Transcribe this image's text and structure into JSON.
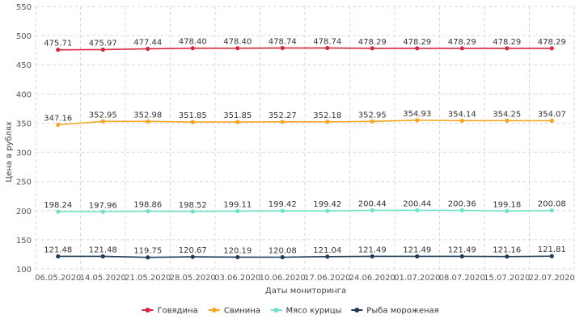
{
  "chart_data": {
    "type": "line",
    "title": "",
    "xlabel": "Даты мониторинга",
    "ylabel": "Цена в рублях",
    "ylim": [
      100,
      550
    ],
    "yticks": [
      100,
      150,
      200,
      250,
      300,
      350,
      400,
      450,
      500,
      550
    ],
    "grid": true,
    "legend_position": "bottom",
    "categories": [
      "06.05.2020",
      "14.05.2020",
      "21.05.2020",
      "28.05.2020",
      "03.06.2020",
      "10.06.2020",
      "17.06.2020",
      "24.06.2020",
      "01.07.2020",
      "08.07.2020",
      "15.07.2020",
      "22.07.2020"
    ],
    "series": [
      {
        "name": "Говядина",
        "color": "#d7263d",
        "values": [
          475.71,
          475.97,
          477.44,
          478.4,
          478.4,
          478.74,
          478.74,
          478.29,
          478.29,
          478.29,
          478.29,
          478.29
        ],
        "labels": [
          "475.71",
          "475.97",
          "477.44",
          "478.40",
          "478.40",
          "478.74",
          "478.74",
          "478.29",
          "478.29",
          "478.29",
          "478.29",
          "478.29"
        ]
      },
      {
        "name": "Свинина",
        "color": "#f5a623",
        "values": [
          347.16,
          352.95,
          352.98,
          351.85,
          351.85,
          352.27,
          352.18,
          352.95,
          354.93,
          354.14,
          354.25,
          354.07
        ],
        "labels": [
          "347.16",
          "352.95",
          "352.98",
          "351.85",
          "351.85",
          "352.27",
          "352.18",
          "352.95",
          "354.93",
          "354.14",
          "354.25",
          "354.07"
        ]
      },
      {
        "name": "Мясо курицы",
        "color": "#6fe3c8",
        "values": [
          198.24,
          197.96,
          198.86,
          198.52,
          199.11,
          199.42,
          199.42,
          200.44,
          200.44,
          200.36,
          199.18,
          200.08
        ],
        "labels": [
          "198.24",
          "197.96",
          "198.86",
          "198.52",
          "199.11",
          "199.42",
          "199.42",
          "200.44",
          "200.44",
          "200.36",
          "199.18",
          "200.08"
        ]
      },
      {
        "name": "Рыба мороженая",
        "color": "#1f3b57",
        "values": [
          121.48,
          121.48,
          119.75,
          120.67,
          120.19,
          120.08,
          121.04,
          121.49,
          121.49,
          121.49,
          121.16,
          121.81
        ],
        "labels": [
          "121.48",
          "121.48",
          "119.75",
          "120.67",
          "120.19",
          "120.08",
          "121.04",
          "121.49",
          "121.49",
          "121.49",
          "121.16",
          "121.81"
        ]
      }
    ]
  }
}
